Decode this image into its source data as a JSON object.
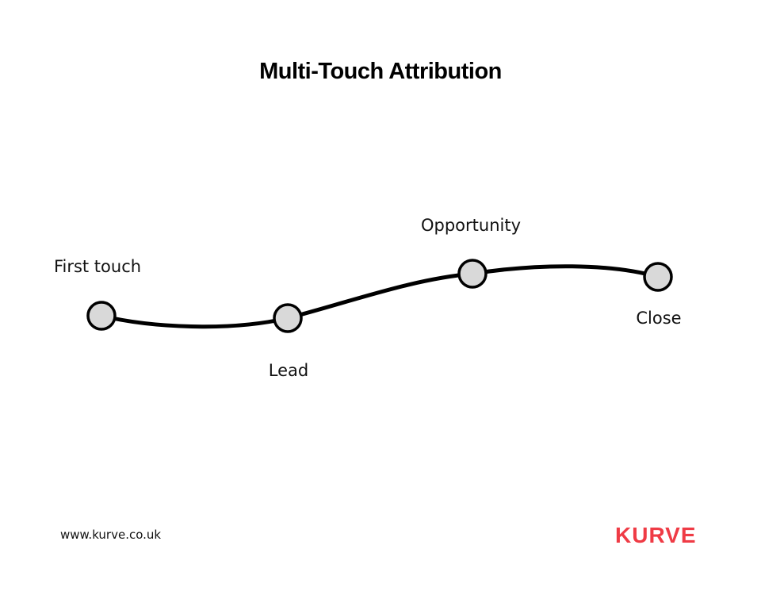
{
  "title": "Multi-Touch Attribution",
  "stages": [
    {
      "label": "First touch"
    },
    {
      "label": "Lead"
    },
    {
      "label": "Opportunity"
    },
    {
      "label": "Close"
    }
  ],
  "footer": {
    "url": "www.kurve.co.uk",
    "logo": "KURVE"
  },
  "colors": {
    "brand": "#EF3B45",
    "node_fill": "#D9D9D9",
    "line": "#000000"
  }
}
